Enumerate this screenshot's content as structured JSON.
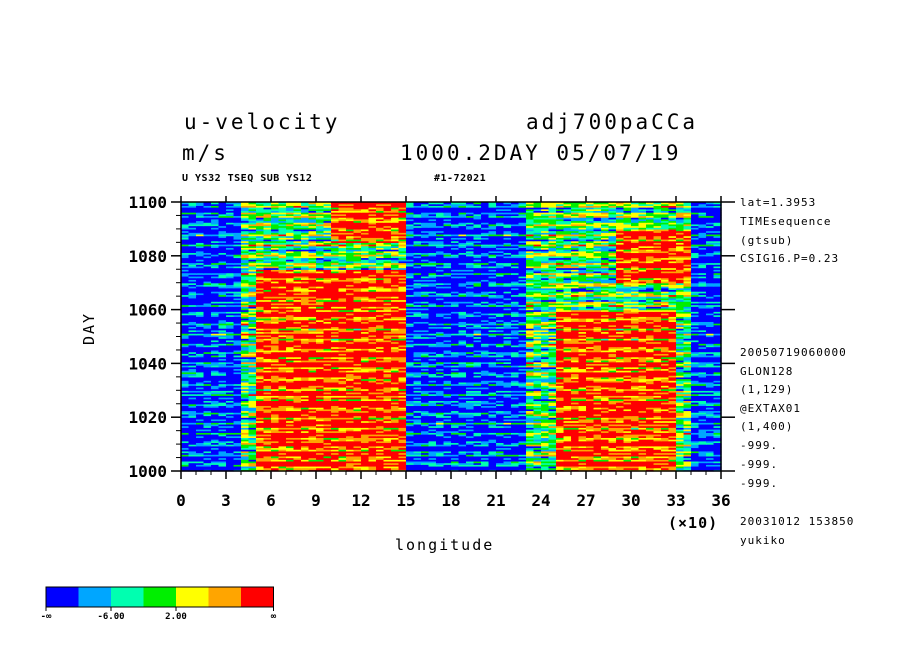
{
  "header": {
    "variable": "u-velocity",
    "units": "m/s",
    "experiment": "adj700paCCa",
    "time_label": "1000.2DAY 05/07/19",
    "subtitle_left": "U YS32 TSEQ SUB YS12",
    "subtitle_right": "#1-72021"
  },
  "side_info": {
    "top": [
      "lat=1.3953",
      "TIMEsequence",
      "(gtsub)",
      "CSIG16.P=0.23"
    ],
    "bottom": [
      "20050719060000",
      "GLON128",
      "(1,129)",
      "@EXTAX01",
      "(1,400)",
      "-999.",
      "-999.",
      "-999.",
      "20031012 153850",
      "yukiko"
    ]
  },
  "colorbar": {
    "colors": [
      "#0000ff",
      "#00a6ff",
      "#00ffb0",
      "#00ef00",
      "#ffff00",
      "#ffa500",
      "#ff0000"
    ],
    "labels": [
      "-∞",
      "-6.00",
      "2.00",
      "∞"
    ]
  },
  "chart_data": {
    "type": "heatmap",
    "title": "u-velocity",
    "xlabel": "longitude",
    "ylabel": "DAY",
    "x_multiplier": "(×10)",
    "xlim": [
      0,
      36
    ],
    "ylim": [
      1000,
      1100
    ],
    "x_ticks": [
      "0",
      "3",
      "6",
      "9",
      "12",
      "15",
      "18",
      "21",
      "24",
      "27",
      "30",
      "33",
      "36"
    ],
    "y_ticks": [
      "1000",
      "1020",
      "1040",
      "1060",
      "1080",
      "1100"
    ],
    "levels": [
      "-∞",
      "-6.00",
      "2.00",
      "∞"
    ],
    "regions": [
      {
        "x": [
          0,
          4
        ],
        "y": [
          1000,
          1100
        ],
        "level": "low"
      },
      {
        "x": [
          5,
          15
        ],
        "y": [
          1000,
          1075
        ],
        "level": "high"
      },
      {
        "x": [
          10,
          15
        ],
        "y": [
          1085,
          1100
        ],
        "level": "high"
      },
      {
        "x": [
          15,
          23
        ],
        "y": [
          1000,
          1100
        ],
        "level": "low"
      },
      {
        "x": [
          25,
          33
        ],
        "y": [
          1000,
          1060
        ],
        "level": "high"
      },
      {
        "x": [
          29,
          34
        ],
        "y": [
          1070,
          1090
        ],
        "level": "high"
      },
      {
        "x": [
          34,
          36
        ],
        "y": [
          1000,
          1100
        ],
        "level": "low"
      }
    ]
  }
}
